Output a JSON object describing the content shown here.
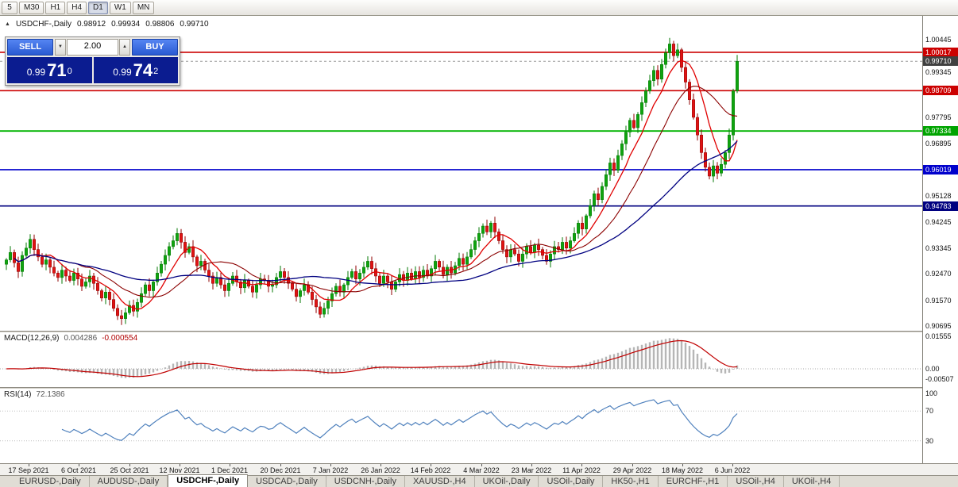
{
  "toolbar": {
    "timeframes": [
      "5",
      "M30",
      "H1",
      "H4",
      "D1",
      "W1",
      "MN"
    ],
    "active": "D1"
  },
  "icons": {
    "chart_marker": "▲",
    "lot_down": "▼",
    "lot_up": "▲"
  },
  "chart_title": {
    "symbol": "USDCHF-,Daily",
    "open": "0.98912",
    "high": "0.99934",
    "low": "0.98806",
    "close": "0.99710"
  },
  "trade_panel": {
    "sell_label": "SELL",
    "buy_label": "BUY",
    "lot": "2.00",
    "bid": {
      "prefix": "0.99",
      "main": "71",
      "sup": "0"
    },
    "ask": {
      "prefix": "0.99",
      "main": "74",
      "sup": "2"
    }
  },
  "hlines": [
    {
      "price": 1.00017,
      "color": "#cc0000",
      "width": 1.6
    },
    {
      "price": 0.98709,
      "color": "#cc0000",
      "width": 1.6
    },
    {
      "price": 0.97334,
      "color": "#00b400",
      "width": 1.8
    },
    {
      "price": 0.96019,
      "color": "#0000cc",
      "width": 1.6
    },
    {
      "price": 0.94783,
      "color": "#000080",
      "width": 1.6
    }
  ],
  "current_price": {
    "value": 0.9971,
    "text": "0.99710"
  },
  "price_axis": {
    "ticks": [
      {
        "text": "1.00445",
        "value": 1.00445
      },
      {
        "text": "0.99345",
        "value": 0.99345
      },
      {
        "text": "0.97795",
        "value": 0.97795
      },
      {
        "text": "0.96895",
        "value": 0.96895
      },
      {
        "text": "0.95128",
        "value": 0.95128
      },
      {
        "text": "0.94245",
        "value": 0.94245
      },
      {
        "text": "0.93345",
        "value": 0.93345
      },
      {
        "text": "0.92470",
        "value": 0.9247
      },
      {
        "text": "0.91570",
        "value": 0.9157
      },
      {
        "text": "0.90695",
        "value": 0.90695
      }
    ],
    "badges": [
      {
        "text": "1.00017",
        "value": 1.00017,
        "bg": "#cc0000"
      },
      {
        "text": "0.99710",
        "value": 0.9971,
        "bg": "#404040"
      },
      {
        "text": "0.98709",
        "value": 0.98709,
        "bg": "#cc0000"
      },
      {
        "text": "0.97334",
        "value": 0.97334,
        "bg": "#00a400"
      },
      {
        "text": "0.96019",
        "value": 0.96019,
        "bg": "#0000cc"
      },
      {
        "text": "0.94783",
        "value": 0.94783,
        "bg": "#000080"
      }
    ]
  },
  "macd_panel": {
    "label": "MACD(12,26,9)",
    "value_main": "0.004286",
    "value_signal": "-0.000554",
    "axis": [
      {
        "text": "0.01555",
        "value": 0.01555
      },
      {
        "text": "0.00",
        "value": 0
      },
      {
        "text": "-0.00507",
        "value": -0.00507
      }
    ]
  },
  "rsi_panel": {
    "label": "RSI(14)",
    "value": "72.1386",
    "axis": [
      {
        "text": "100",
        "value": 100
      },
      {
        "text": "70",
        "value": 70
      },
      {
        "text": "30",
        "value": 30
      }
    ],
    "levels": [
      70,
      30
    ]
  },
  "date_axis": {
    "labels": [
      "17 Sep 2021",
      "6 Oct 2021",
      "25 Oct 2021",
      "12 Nov 2021",
      "1 Dec 2021",
      "20 Dec 2021",
      "7 Jan 2022",
      "26 Jan 2022",
      "14 Feb 2022",
      "4 Mar 2022",
      "23 Mar 2022",
      "11 Apr 2022",
      "29 Apr 2022",
      "18 May 2022",
      "6 Jun 2022"
    ]
  },
  "tabs": {
    "items": [
      {
        "label": "EURUSD-,Daily"
      },
      {
        "label": "AUDUSD-,Daily"
      },
      {
        "label": "USDCHF-,Daily"
      },
      {
        "label": "USDCAD-,Daily"
      },
      {
        "label": "USDCNH-,Daily"
      },
      {
        "label": "XAUUSD-,H4"
      },
      {
        "label": "UKOil-,Daily"
      },
      {
        "label": "USOil-,Daily"
      },
      {
        "label": "HK50-,H1"
      },
      {
        "label": "EURCHF-,H1"
      },
      {
        "label": "USOil-,H4"
      },
      {
        "label": "UKOil-,H4"
      }
    ],
    "active_index": 2
  },
  "chart_data": {
    "type": "candlestick",
    "title": "USDCHF-,Daily",
    "timeframe": "Daily",
    "ohlc_display": {
      "open": 0.98912,
      "high": 0.99934,
      "low": 0.98806,
      "close": 0.9971
    },
    "x_labels": [
      "17 Sep 2021",
      "6 Oct 2021",
      "25 Oct 2021",
      "12 Nov 2021",
      "1 Dec 2021",
      "20 Dec 2021",
      "7 Jan 2022",
      "26 Jan 2022",
      "14 Feb 2022",
      "4 Mar 2022",
      "23 Mar 2022",
      "11 Apr 2022",
      "29 Apr 2022",
      "18 May 2022",
      "6 Jun 2022"
    ],
    "ylim": [
      0.90563,
      1.01255
    ],
    "closes": [
      0.9295,
      0.932,
      0.9285,
      0.9255,
      0.931,
      0.9335,
      0.9365,
      0.933,
      0.9305,
      0.928,
      0.9295,
      0.927,
      0.925,
      0.9235,
      0.926,
      0.924,
      0.9225,
      0.925,
      0.923,
      0.9205,
      0.922,
      0.924,
      0.9215,
      0.919,
      0.9165,
      0.9185,
      0.916,
      0.913,
      0.9105,
      0.9095,
      0.9115,
      0.914,
      0.912,
      0.915,
      0.918,
      0.921,
      0.919,
      0.922,
      0.925,
      0.928,
      0.931,
      0.934,
      0.936,
      0.9385,
      0.9355,
      0.932,
      0.934,
      0.9305,
      0.9275,
      0.929,
      0.926,
      0.924,
      0.9215,
      0.9235,
      0.921,
      0.919,
      0.9215,
      0.924,
      0.922,
      0.92,
      0.9225,
      0.9205,
      0.9185,
      0.921,
      0.923,
      0.9225,
      0.9205,
      0.921,
      0.9235,
      0.9255,
      0.9235,
      0.9215,
      0.9195,
      0.917,
      0.919,
      0.921,
      0.9185,
      0.916,
      0.9135,
      0.911,
      0.913,
      0.9155,
      0.918,
      0.9205,
      0.9185,
      0.921,
      0.9235,
      0.9255,
      0.923,
      0.925,
      0.927,
      0.929,
      0.9265,
      0.924,
      0.9215,
      0.924,
      0.922,
      0.9195,
      0.922,
      0.9245,
      0.9225,
      0.925,
      0.923,
      0.9255,
      0.9235,
      0.926,
      0.924,
      0.9265,
      0.929,
      0.927,
      0.9245,
      0.927,
      0.925,
      0.9275,
      0.93,
      0.928,
      0.9305,
      0.933,
      0.936,
      0.9385,
      0.941,
      0.939,
      0.942,
      0.939,
      0.936,
      0.933,
      0.9305,
      0.933,
      0.9315,
      0.929,
      0.9315,
      0.934,
      0.932,
      0.9345,
      0.933,
      0.931,
      0.929,
      0.9315,
      0.934,
      0.933,
      0.9355,
      0.9335,
      0.936,
      0.9385,
      0.942,
      0.94,
      0.9445,
      0.948,
      0.952,
      0.95,
      0.9545,
      0.9585,
      0.9625,
      0.96,
      0.965,
      0.969,
      0.973,
      0.977,
      0.9745,
      0.979,
      0.983,
      0.987,
      0.9905,
      0.994,
      0.991,
      0.996,
      1.0,
      1.003,
      0.999,
      1.001,
      0.995,
      0.99,
      0.984,
      0.978,
      0.972,
      0.966,
      0.961,
      0.958,
      0.9615,
      0.959,
      0.962,
      0.966,
      0.972,
      0.987,
      0.9971
    ],
    "colors": {
      "up": "#0fa30f",
      "up_border": "#067806",
      "down": "#e01313",
      "down_border": "#8f0000"
    },
    "moving_averages": [
      {
        "period": 8,
        "color": "#e00000",
        "width": 1.3
      },
      {
        "period": 18,
        "color": "#8b0000",
        "width": 1.1
      },
      {
        "period": 45,
        "color": "#000080",
        "width": 1.3
      }
    ],
    "indicators": {
      "macd": {
        "params": "12,26,9",
        "main": 0.004286,
        "signal": -0.000554
      },
      "rsi": {
        "params": "14",
        "value": 72.1386
      }
    }
  }
}
